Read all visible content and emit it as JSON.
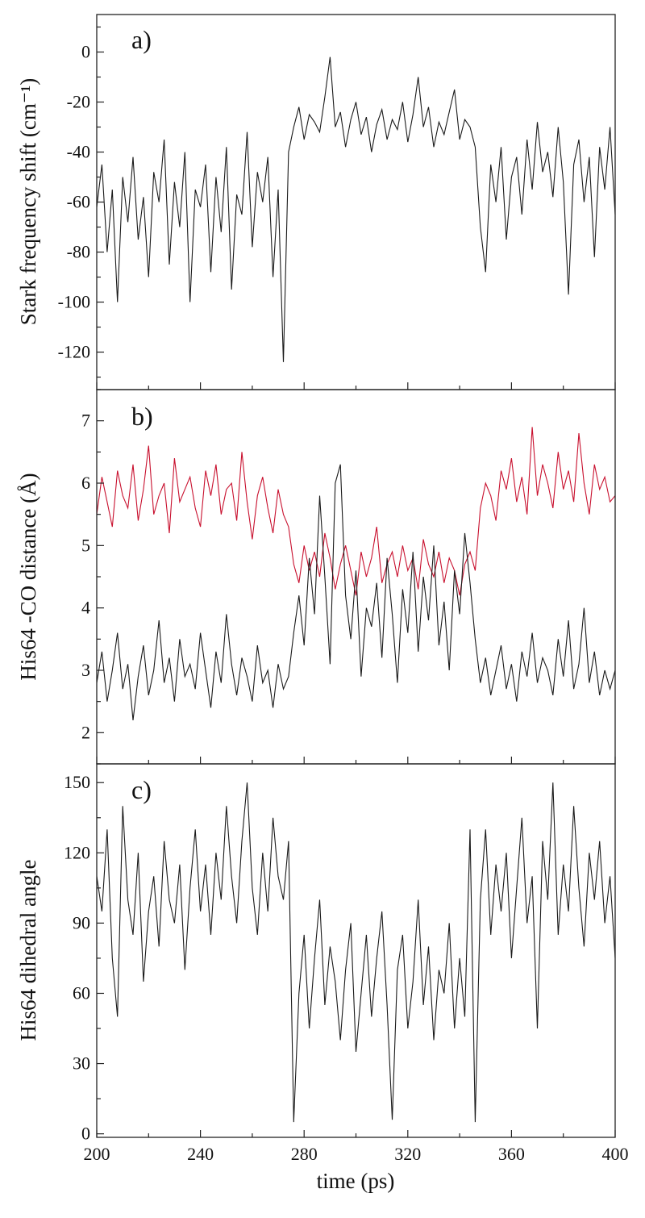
{
  "chart_data": [
    {
      "type": "line",
      "panel_label": "a)",
      "ylabel": "Stark frequency shift (cm⁻¹)",
      "xlim": [
        200,
        400
      ],
      "ylim": [
        -135,
        15
      ],
      "yticks": [
        -120,
        -100,
        -80,
        -60,
        -40,
        -20,
        0
      ],
      "ytick_labels": [
        "-120",
        "-100",
        "-80",
        "-60",
        "-40",
        "-20",
        "0"
      ],
      "grid": false,
      "x_start": 200,
      "x_step": 2,
      "series": [
        {
          "color": "#1a1a1a",
          "values": [
            -62,
            -45,
            -80,
            -55,
            -100,
            -50,
            -68,
            -42,
            -75,
            -58,
            -90,
            -48,
            -60,
            -35,
            -85,
            -52,
            -70,
            -40,
            -100,
            -55,
            -62,
            -45,
            -88,
            -50,
            -72,
            -38,
            -95,
            -57,
            -65,
            -32,
            -78,
            -48,
            -60,
            -42,
            -90,
            -55,
            -124,
            -40,
            -30,
            -22,
            -35,
            -25,
            -28,
            -32,
            -18,
            -2,
            -30,
            -24,
            -38,
            -27,
            -20,
            -33,
            -26,
            -40,
            -29,
            -23,
            -35,
            -27,
            -31,
            -20,
            -36,
            -25,
            -10,
            -30,
            -22,
            -38,
            -28,
            -33,
            -24,
            -15,
            -35,
            -27,
            -30,
            -38,
            -70,
            -88,
            -45,
            -60,
            -38,
            -75,
            -50,
            -42,
            -65,
            -35,
            -55,
            -28,
            -48,
            -40,
            -58,
            -30,
            -52,
            -97,
            -45,
            -35,
            -60,
            -42,
            -82,
            -38,
            -55,
            -30,
            -65
          ]
        }
      ]
    },
    {
      "type": "line",
      "panel_label": "b)",
      "ylabel": "His64 -CO distance (Å)",
      "xlim": [
        200,
        400
      ],
      "ylim": [
        1.5,
        7.5
      ],
      "yticks": [
        2,
        3,
        4,
        5,
        6,
        7
      ],
      "ytick_labels": [
        "2",
        "3",
        "4",
        "5",
        "6",
        "7"
      ],
      "grid": false,
      "x_start": 200,
      "x_step": 2,
      "series": [
        {
          "color": "#c8102e",
          "values": [
            5.5,
            6.1,
            5.7,
            5.3,
            6.2,
            5.8,
            5.6,
            6.3,
            5.4,
            5.9,
            6.6,
            5.5,
            5.8,
            6.0,
            5.2,
            6.4,
            5.7,
            5.9,
            6.1,
            5.6,
            5.3,
            6.2,
            5.8,
            6.3,
            5.5,
            5.9,
            6.0,
            5.4,
            6.5,
            5.7,
            5.1,
            5.8,
            6.1,
            5.6,
            5.2,
            5.9,
            5.5,
            5.3,
            4.7,
            4.4,
            5.0,
            4.6,
            4.9,
            4.5,
            5.2,
            4.8,
            4.3,
            4.7,
            5.0,
            4.6,
            4.2,
            4.9,
            4.5,
            4.8,
            5.3,
            4.4,
            4.7,
            4.9,
            4.5,
            5.0,
            4.6,
            4.8,
            4.3,
            5.1,
            4.7,
            4.5,
            4.9,
            4.4,
            4.8,
            4.6,
            4.2,
            4.7,
            4.9,
            4.6,
            5.6,
            6.0,
            5.8,
            5.4,
            6.2,
            5.9,
            6.4,
            5.7,
            6.1,
            5.5,
            6.9,
            5.8,
            6.3,
            6.0,
            5.6,
            6.5,
            5.9,
            6.2,
            5.7,
            6.8,
            6.0,
            5.5,
            6.3,
            5.9,
            6.1,
            5.7,
            5.8
          ]
        },
        {
          "color": "#1a1a1a",
          "values": [
            2.8,
            3.3,
            2.5,
            3.0,
            3.6,
            2.7,
            3.1,
            2.2,
            2.9,
            3.4,
            2.6,
            3.0,
            3.8,
            2.8,
            3.2,
            2.5,
            3.5,
            2.9,
            3.1,
            2.7,
            3.6,
            3.0,
            2.4,
            3.3,
            2.8,
            3.9,
            3.1,
            2.6,
            3.2,
            2.9,
            2.5,
            3.4,
            2.8,
            3.0,
            2.4,
            3.1,
            2.7,
            2.9,
            3.6,
            4.2,
            3.4,
            4.8,
            3.9,
            5.8,
            4.5,
            3.1,
            6.0,
            6.3,
            4.2,
            3.5,
            4.6,
            2.9,
            4.0,
            3.7,
            4.4,
            3.2,
            4.8,
            3.9,
            2.8,
            4.3,
            3.6,
            4.9,
            3.3,
            4.5,
            3.8,
            5.0,
            3.4,
            4.1,
            3.0,
            4.6,
            3.9,
            5.2,
            4.4,
            3.5,
            2.8,
            3.2,
            2.6,
            3.0,
            3.4,
            2.7,
            3.1,
            2.5,
            3.3,
            2.9,
            3.6,
            2.8,
            3.2,
            3.0,
            2.6,
            3.5,
            2.9,
            3.8,
            2.7,
            3.1,
            4.0,
            2.8,
            3.3,
            2.6,
            3.0,
            2.7,
            3.0
          ]
        }
      ]
    },
    {
      "type": "line",
      "panel_label": "c)",
      "ylabel": "His64 dihedral angle",
      "xlabel": "time (ps)",
      "xlim": [
        200,
        400
      ],
      "ylim": [
        -1.5,
        158
      ],
      "yticks": [
        0,
        30,
        60,
        90,
        120,
        150
      ],
      "ytick_labels": [
        "0",
        "30",
        "60",
        "90",
        "120",
        "150"
      ],
      "xticks": [
        200,
        240,
        280,
        320,
        360,
        400
      ],
      "xtick_labels": [
        "200",
        "240",
        "280",
        "320",
        "360",
        "400"
      ],
      "grid": false,
      "x_start": 200,
      "x_step": 2,
      "series": [
        {
          "color": "#1a1a1a",
          "values": [
            110,
            95,
            130,
            75,
            50,
            140,
            100,
            85,
            120,
            65,
            95,
            110,
            80,
            125,
            100,
            90,
            115,
            70,
            105,
            130,
            95,
            115,
            85,
            120,
            100,
            140,
            110,
            90,
            125,
            150,
            105,
            85,
            120,
            95,
            135,
            110,
            100,
            125,
            5,
            60,
            85,
            45,
            75,
            100,
            55,
            80,
            65,
            40,
            70,
            90,
            35,
            60,
            85,
            50,
            75,
            95,
            55,
            6,
            70,
            85,
            45,
            65,
            100,
            55,
            80,
            40,
            70,
            60,
            90,
            45,
            75,
            50,
            130,
            5,
            100,
            130,
            85,
            115,
            95,
            120,
            75,
            105,
            135,
            90,
            110,
            45,
            125,
            100,
            150,
            85,
            115,
            95,
            140,
            105,
            80,
            120,
            100,
            125,
            90,
            110,
            75
          ]
        }
      ]
    }
  ]
}
